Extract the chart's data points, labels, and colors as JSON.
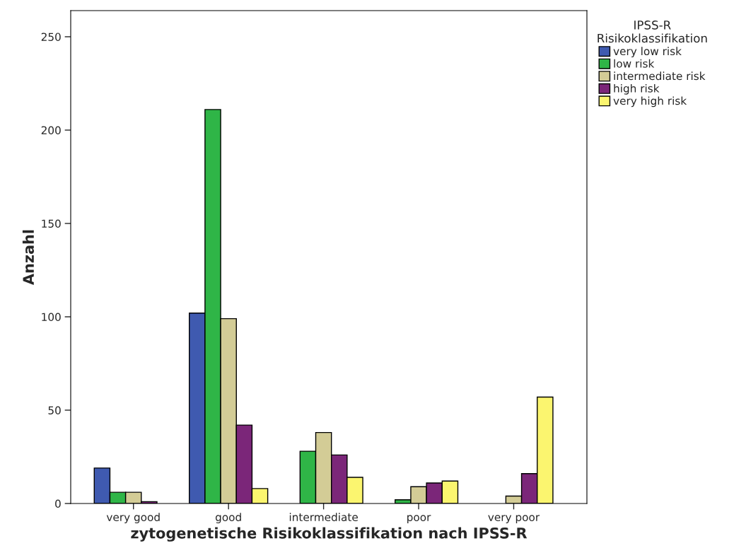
{
  "chart_data": {
    "type": "bar",
    "xlabel": "zytogenetische Risikoklassifikation nach IPSS-R",
    "ylabel": "Anzahl",
    "legend_title": "IPSS-R\nRisikoklassifikation",
    "categories": [
      "very good",
      "good",
      "intermediate",
      "poor",
      "very poor"
    ],
    "series": [
      {
        "name": "very low risk",
        "color": "#3f5ab0",
        "values": [
          19,
          102,
          null,
          null,
          null
        ]
      },
      {
        "name": "low risk",
        "color": "#2fb547",
        "values": [
          6,
          211,
          28,
          2,
          null
        ]
      },
      {
        "name": "intermediate risk",
        "color": "#d3cc96",
        "values": [
          6,
          99,
          38,
          9,
          4
        ]
      },
      {
        "name": "high risk",
        "color": "#7b2679",
        "values": [
          1,
          42,
          26,
          11,
          16
        ]
      },
      {
        "name": "very high risk",
        "color": "#fbf56f",
        "values": [
          null,
          8,
          14,
          12,
          57
        ]
      }
    ],
    "ylim": [
      0,
      264
    ],
    "yticks": [
      0,
      50,
      100,
      150,
      200,
      250
    ],
    "grid": false,
    "legend": "top right"
  }
}
